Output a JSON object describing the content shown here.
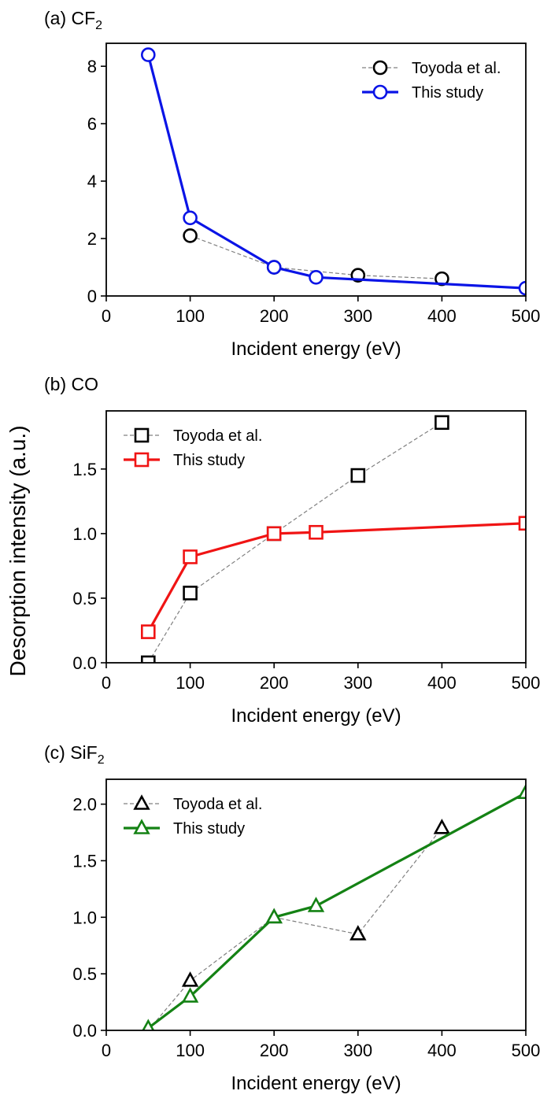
{
  "shared_ylabel": "Desorption intensity (a.u.)",
  "chart_data": [
    {
      "type": "line",
      "title": "(a) CF",
      "title_sub": "2",
      "xlabel": "Incident energy (eV)",
      "xlim": [
        0,
        500
      ],
      "ylim": [
        0,
        8.8
      ],
      "xticks": [
        "0",
        "100",
        "200",
        "300",
        "400",
        "500"
      ],
      "yticks": [
        "0",
        "2",
        "4",
        "6",
        "8"
      ],
      "legend_position": "top-right",
      "marker": "circle",
      "series": [
        {
          "name": "Toyoda et al.",
          "color": "#000000",
          "style": "dashed",
          "x": [
            100,
            200,
            300,
            400
          ],
          "y": [
            2.1,
            1.0,
            0.72,
            0.6
          ]
        },
        {
          "name": "This study",
          "color": "#0a14e6",
          "style": "solid",
          "x": [
            50,
            100,
            200,
            250,
            500
          ],
          "y": [
            8.4,
            2.72,
            1.0,
            0.65,
            0.27
          ]
        }
      ]
    },
    {
      "type": "line",
      "title": "(b) CO",
      "title_sub": "",
      "xlabel": "Incident energy (eV)",
      "xlim": [
        0,
        500
      ],
      "ylim": [
        0,
        1.95
      ],
      "xticks": [
        "0",
        "100",
        "200",
        "300",
        "400",
        "500"
      ],
      "yticks": [
        "0.0",
        "0.5",
        "1.0",
        "1.5"
      ],
      "legend_position": "top-left",
      "marker": "square",
      "series": [
        {
          "name": "Toyoda et al.",
          "color": "#000000",
          "style": "dashed",
          "x": [
            50,
            100,
            200,
            300,
            400
          ],
          "y": [
            0.0,
            0.54,
            1.0,
            1.45,
            1.86
          ]
        },
        {
          "name": "This study",
          "color": "#f01414",
          "style": "solid",
          "x": [
            50,
            100,
            200,
            250,
            500
          ],
          "y": [
            0.24,
            0.82,
            1.0,
            1.01,
            1.08
          ]
        }
      ]
    },
    {
      "type": "line",
      "title": "(c) SiF",
      "title_sub": "2",
      "xlabel": "Incident energy (eV)",
      "xlim": [
        0,
        500
      ],
      "ylim": [
        0,
        2.22
      ],
      "xticks": [
        "0",
        "100",
        "200",
        "300",
        "400",
        "500"
      ],
      "yticks": [
        "0.0",
        "0.5",
        "1.0",
        "1.5",
        "2.0"
      ],
      "legend_position": "top-left",
      "marker": "triangle",
      "series": [
        {
          "name": "Toyoda et al.",
          "color": "#000000",
          "style": "dashed",
          "x": [
            50,
            100,
            200,
            300,
            400
          ],
          "y": [
            0.0,
            0.44,
            1.0,
            0.85,
            1.79
          ]
        },
        {
          "name": "This study",
          "color": "#148214",
          "style": "solid",
          "x": [
            50,
            100,
            200,
            250,
            500
          ],
          "y": [
            0.02,
            0.3,
            1.0,
            1.1,
            2.1
          ]
        }
      ]
    }
  ]
}
